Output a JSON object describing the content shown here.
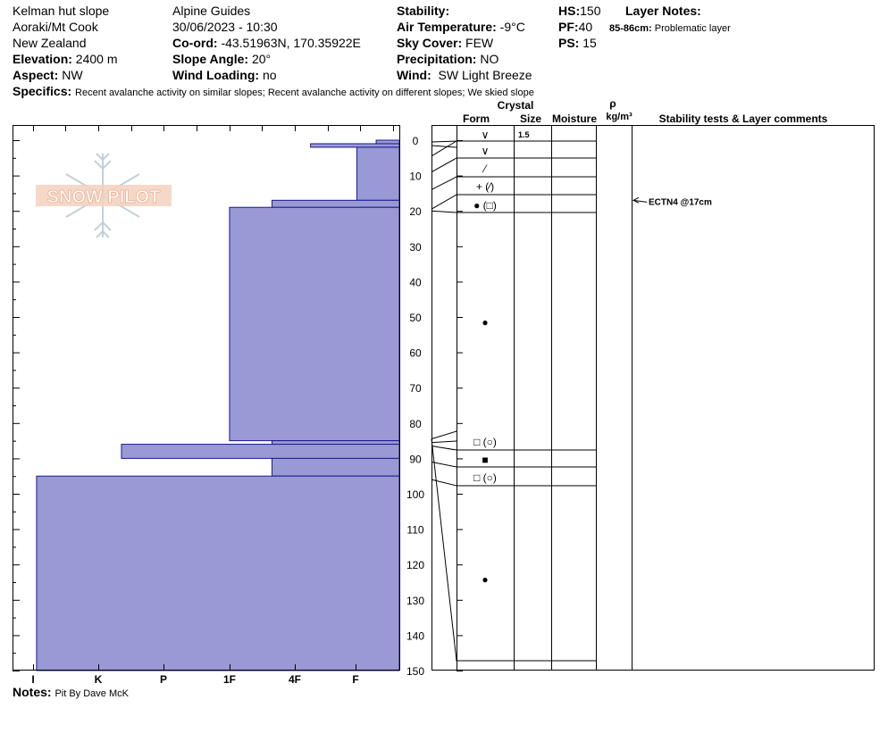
{
  "header": {
    "site": "Kelman hut slope",
    "area": "Aoraki/Mt Cook",
    "country": "New Zealand",
    "elevation_label": "Elevation:",
    "elevation_value": "2400 m",
    "aspect_label": "Aspect:",
    "aspect_value": "NW",
    "observer": "Alpine  Guides",
    "datetime": "30/06/2023 - 10:30",
    "coord_label": "Co-ord:",
    "coord_value": "-43.51963N, 170.35922E",
    "slope_label": "Slope Angle:",
    "slope_value": "20°",
    "wind_loading_label": "Wind Loading:",
    "wind_loading_value": "no",
    "stability_label": "Stability:",
    "air_temp_label": "Air Temperature:",
    "air_temp_value": "-9°C",
    "sky_label": "Sky Cover:",
    "sky_value": "FEW",
    "precip_label": "Precipitation:",
    "precip_value": "NO",
    "wind_label": "Wind:",
    "wind_value": "SW Light Breeze",
    "hs_label": "HS:",
    "hs_value": "150",
    "pf_label": "PF:",
    "pf_value": "40",
    "ps_label": "PS:",
    "ps_value": "15",
    "layer_notes_label": "Layer Notes:",
    "layer_note_depth": "85-86cm:",
    "layer_note_text": "Problematic layer",
    "specifics_label": "Specifics:",
    "specifics_value": "Recent avalanche activity on similar slopes; Recent avalanche activity on different slopes; We skied slope"
  },
  "table_headers": {
    "crystal": "Crystal",
    "form": "Form",
    "size": "Size",
    "moisture": "Moisture",
    "rho": "ρ",
    "density_unit": "kg/m³",
    "stability": "Stability tests & Layer comments"
  },
  "notes": {
    "label": "Notes:",
    "value": "Pit By Dave McK"
  },
  "logo_text": "SNOW PILOT",
  "colors": {
    "hardness_fill": "#9999d6",
    "hardness_stroke": "#1a1a8c"
  },
  "chart_data": {
    "type": "bar",
    "orientation": "horizontal",
    "depth_axis": {
      "min": 0,
      "max": 150,
      "ticks": [
        0,
        10,
        20,
        30,
        40,
        50,
        60,
        70,
        80,
        90,
        100,
        110,
        120,
        130,
        140,
        150
      ]
    },
    "hardness_ticks": [
      "I",
      "K",
      "P",
      "1F",
      "4F",
      "F"
    ],
    "hardness_layers": [
      {
        "top": 0,
        "bottom": 1,
        "hardness": 0.06
      },
      {
        "top": 1,
        "bottom": 2,
        "hardness": 0.23
      },
      {
        "top": 2,
        "bottom": 17,
        "hardness": 0.11
      },
      {
        "top": 17,
        "bottom": 19,
        "hardness": 0.33
      },
      {
        "top": 19,
        "bottom": 85,
        "hardness": 0.44
      },
      {
        "top": 85,
        "bottom": 86,
        "hardness": 0.33
      },
      {
        "top": 86,
        "bottom": 90,
        "hardness": 0.72
      },
      {
        "top": 90,
        "bottom": 95,
        "hardness": 0.33
      },
      {
        "top": 95,
        "bottom": 150,
        "hardness": 0.94
      }
    ],
    "layers": [
      {
        "top": 0,
        "bottom": 4.5,
        "form": "∨",
        "size": "1.5"
      },
      {
        "top": 4.5,
        "bottom": 9,
        "form": "∨",
        "size": ""
      },
      {
        "top": 9,
        "bottom": 14,
        "form": "⁄",
        "size": ""
      },
      {
        "top": 14,
        "bottom": 19.5,
        "form": "+ (⁄)",
        "size": ""
      },
      {
        "top": 19.5,
        "bottom": 20,
        "form": "● (□)",
        "size": ""
      },
      {
        "top": 20,
        "bottom": 84.5,
        "form": "●",
        "size": ""
      },
      {
        "top": 84.5,
        "bottom": 86.5,
        "form": "□ (○)",
        "size": ""
      },
      {
        "top": 86.5,
        "bottom": 91,
        "form": "■",
        "size": ""
      },
      {
        "top": 91,
        "bottom": 96,
        "form": "□ (○)",
        "size": ""
      },
      {
        "top": 96,
        "bottom": 150,
        "form": "●",
        "size": ""
      }
    ],
    "stability_tests": [
      {
        "depth": 17,
        "label": "ECTN4 @17cm"
      }
    ]
  }
}
